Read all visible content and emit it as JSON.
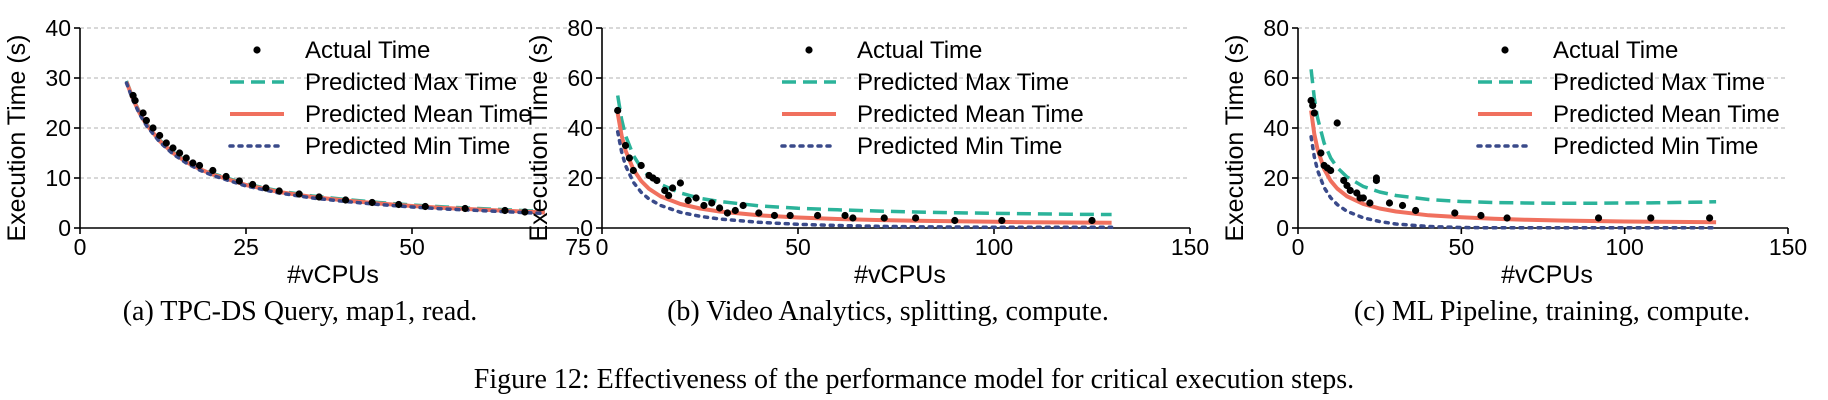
{
  "figure_caption": "Figure 12: Effectiveness of the performance model for critical execution steps.",
  "legend": {
    "actual": "Actual Time",
    "max": "Predicted Max Time",
    "mean": "Predicted Mean Time",
    "min": "Predicted Min Time"
  },
  "colors": {
    "actual": "#000000",
    "max": "#2bb39a",
    "mean": "#f0705e",
    "min": "#3a4a8a",
    "grid": "#b0b0b0"
  },
  "chart_data": [
    {
      "type": "scatter",
      "caption": "(a) TPC-DS Query, map1, read.",
      "xlabel": "#vCPUs",
      "ylabel": "Execution Time (s)",
      "xlim": [
        0,
        75
      ],
      "ylim": [
        0,
        40
      ],
      "xticks": [
        0,
        25,
        50,
        75
      ],
      "yticks": [
        0,
        10,
        20,
        30,
        40
      ],
      "grid": "horizontal dashed",
      "legend_position": "top-right",
      "actual_points": [
        [
          8,
          26.5
        ],
        [
          8.3,
          25.5
        ],
        [
          9.5,
          23
        ],
        [
          10,
          21.5
        ],
        [
          11,
          20
        ],
        [
          12,
          18.5
        ],
        [
          13,
          17
        ],
        [
          14,
          16
        ],
        [
          15,
          15
        ],
        [
          16,
          14
        ],
        [
          17,
          13
        ],
        [
          18,
          12.5
        ],
        [
          20,
          11.5
        ],
        [
          22,
          10.3
        ],
        [
          24,
          9.4
        ],
        [
          26,
          8.7
        ],
        [
          28,
          8
        ],
        [
          30,
          7.4
        ],
        [
          33,
          6.8
        ],
        [
          36,
          6.2
        ],
        [
          40,
          5.6
        ],
        [
          44,
          5.1
        ],
        [
          48,
          4.7
        ],
        [
          52,
          4.3
        ],
        [
          58,
          3.9
        ],
        [
          64,
          3.5
        ],
        [
          67,
          3.2
        ]
      ],
      "series": [
        {
          "name": "Predicted Max Time",
          "key": "max",
          "x": [
            7,
            8,
            9,
            10,
            12,
            14,
            16,
            18,
            20,
            25,
            30,
            35,
            40,
            45,
            50,
            55,
            60,
            65,
            70
          ],
          "y": [
            29.4,
            25.9,
            23.1,
            20.9,
            17.6,
            15.2,
            13.4,
            12.0,
            10.9,
            8.8,
            7.4,
            6.4,
            5.7,
            5.1,
            4.6,
            4.2,
            3.9,
            3.6,
            3.3
          ]
        },
        {
          "name": "Predicted Mean Time",
          "key": "mean",
          "x": [
            7,
            8,
            9,
            10,
            12,
            14,
            16,
            18,
            20,
            25,
            30,
            35,
            40,
            45,
            50,
            55,
            60,
            65,
            70
          ],
          "y": [
            29.2,
            25.7,
            22.9,
            20.7,
            17.4,
            15.0,
            13.2,
            11.8,
            10.7,
            8.6,
            7.2,
            6.2,
            5.5,
            4.9,
            4.4,
            4.0,
            3.7,
            3.4,
            3.1
          ]
        },
        {
          "name": "Predicted Min Time",
          "key": "min",
          "x": [
            7,
            8,
            9,
            10,
            12,
            14,
            16,
            18,
            20,
            25,
            30,
            35,
            40,
            45,
            50,
            55,
            60,
            65,
            70
          ],
          "y": [
            29.0,
            25.5,
            22.7,
            20.5,
            17.2,
            14.8,
            13.0,
            11.6,
            10.5,
            8.4,
            7.0,
            6.0,
            5.3,
            4.7,
            4.2,
            3.8,
            3.5,
            3.2,
            2.9
          ]
        }
      ]
    },
    {
      "type": "scatter",
      "caption": "(b) Video Analytics, splitting, compute.",
      "xlabel": "#vCPUs",
      "ylabel": "Execution Time (s)",
      "xlim": [
        0,
        150
      ],
      "ylim": [
        0,
        80
      ],
      "xticks": [
        0,
        50,
        100,
        150
      ],
      "yticks": [
        0,
        20,
        40,
        60,
        80
      ],
      "grid": "horizontal dashed",
      "legend_position": "top-right",
      "actual_points": [
        [
          4,
          47
        ],
        [
          6,
          33
        ],
        [
          7,
          28
        ],
        [
          8,
          23
        ],
        [
          10,
          25
        ],
        [
          12,
          21
        ],
        [
          13,
          20
        ],
        [
          14,
          19
        ],
        [
          16,
          15
        ],
        [
          17,
          13
        ],
        [
          18,
          16
        ],
        [
          20,
          18
        ],
        [
          22,
          11
        ],
        [
          24,
          12
        ],
        [
          26,
          9
        ],
        [
          28,
          10
        ],
        [
          30,
          8
        ],
        [
          32,
          6
        ],
        [
          34,
          7
        ],
        [
          36,
          9
        ],
        [
          40,
          6
        ],
        [
          44,
          5
        ],
        [
          48,
          5
        ],
        [
          55,
          5
        ],
        [
          62,
          5
        ],
        [
          64,
          4
        ],
        [
          72,
          4
        ],
        [
          80,
          4
        ],
        [
          90,
          3
        ],
        [
          102,
          3
        ],
        [
          125,
          3
        ]
      ],
      "series": [
        {
          "name": "Predicted Max Time",
          "key": "max",
          "x": [
            4,
            5,
            6,
            8,
            10,
            12,
            15,
            20,
            25,
            30,
            40,
            50,
            60,
            70,
            80,
            90,
            100,
            110,
            120,
            130
          ],
          "y": [
            53,
            43.5,
            37,
            29,
            24,
            20.7,
            17.4,
            14.0,
            11.9,
            10.6,
            8.9,
            7.9,
            7.3,
            6.8,
            6.4,
            6.1,
            5.9,
            5.7,
            5.5,
            5.4
          ]
        },
        {
          "name": "Predicted Mean Time",
          "key": "mean",
          "x": [
            4,
            5,
            6,
            8,
            10,
            12,
            15,
            20,
            25,
            30,
            40,
            50,
            60,
            70,
            80,
            90,
            100,
            110,
            120,
            130
          ],
          "y": [
            45.9,
            37,
            31,
            23.4,
            18.8,
            15.7,
            12.6,
            9.6,
            7.8,
            6.6,
            5.1,
            4.2,
            3.6,
            3.2,
            2.9,
            2.7,
            2.5,
            2.3,
            2.2,
            2.1
          ]
        },
        {
          "name": "Predicted Min Time",
          "key": "min",
          "x": [
            4,
            5,
            6,
            8,
            10,
            12,
            15,
            20,
            25,
            30,
            40,
            50,
            60,
            70,
            80,
            90,
            100,
            110,
            120,
            130
          ],
          "y": [
            38.5,
            30.5,
            25,
            18.3,
            14.3,
            11.6,
            9.0,
            6.3,
            4.7,
            3.6,
            2.3,
            1.5,
            1.0,
            0.7,
            0.5,
            0.4,
            0.3,
            0.3,
            0.3,
            0.3
          ]
        }
      ]
    },
    {
      "type": "scatter",
      "caption": "(c) ML Pipeline, training, compute.",
      "xlabel": "#vCPUs",
      "ylabel": "Execution Time (s)",
      "xlim": [
        0,
        150
      ],
      "ylim": [
        0,
        80
      ],
      "xticks": [
        0,
        50,
        100,
        150
      ],
      "yticks": [
        0,
        20,
        40,
        60,
        80
      ],
      "grid": "horizontal dashed",
      "legend_position": "top-right",
      "actual_points": [
        [
          4,
          51
        ],
        [
          4.5,
          49
        ],
        [
          5,
          46
        ],
        [
          7,
          30
        ],
        [
          8,
          25
        ],
        [
          9,
          24
        ],
        [
          10,
          23
        ],
        [
          12,
          42
        ],
        [
          14,
          19
        ],
        [
          15,
          17
        ],
        [
          16,
          15
        ],
        [
          18,
          14
        ],
        [
          19,
          12
        ],
        [
          20,
          12
        ],
        [
          22,
          10
        ],
        [
          24,
          19
        ],
        [
          24,
          20
        ],
        [
          28,
          10
        ],
        [
          32,
          9
        ],
        [
          36,
          7
        ],
        [
          48,
          6
        ],
        [
          56,
          5
        ],
        [
          64,
          4
        ],
        [
          92,
          4
        ],
        [
          108,
          4
        ],
        [
          126,
          4
        ]
      ],
      "series": [
        {
          "name": "Predicted Max Time",
          "key": "max",
          "x": [
            4,
            5,
            6,
            8,
            10,
            12,
            15,
            20,
            25,
            30,
            40,
            50,
            60,
            70,
            80,
            90,
            100,
            110,
            120,
            128
          ],
          "y": [
            63.5,
            52,
            44,
            34,
            28,
            24.2,
            20.4,
            16.6,
            14.4,
            13.0,
            11.4,
            10.6,
            10.2,
            10.0,
            9.9,
            9.9,
            10.0,
            10.1,
            10.3,
            10.5
          ]
        },
        {
          "name": "Predicted Mean Time",
          "key": "mean",
          "x": [
            4,
            5,
            6,
            8,
            10,
            12,
            15,
            20,
            25,
            30,
            40,
            50,
            60,
            70,
            80,
            90,
            100,
            110,
            120,
            128
          ],
          "y": [
            47,
            37.6,
            31.4,
            23.6,
            18.9,
            15.8,
            12.7,
            9.6,
            7.8,
            6.6,
            5.1,
            4.3,
            3.7,
            3.3,
            3.0,
            2.8,
            2.6,
            2.5,
            2.4,
            2.3
          ]
        },
        {
          "name": "Predicted Min Time",
          "key": "min",
          "x": [
            4,
            5,
            6,
            8,
            10,
            12,
            15,
            20,
            25,
            30,
            40,
            50,
            60,
            70,
            80,
            90,
            100,
            110,
            120,
            128
          ],
          "y": [
            36.5,
            28.5,
            23,
            16.2,
            12.1,
            9.4,
            6.7,
            4.1,
            2.6,
            1.6,
            0.6,
            0.2,
            0.1,
            0.1,
            0.1,
            0.1,
            0.1,
            0.1,
            0.1,
            0.1
          ]
        }
      ]
    }
  ]
}
